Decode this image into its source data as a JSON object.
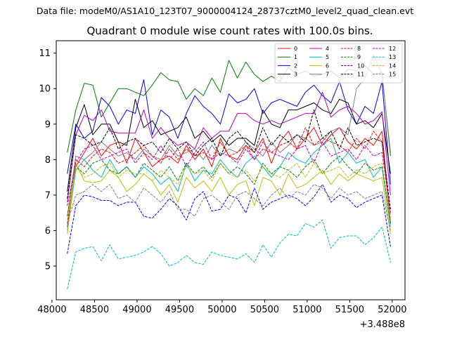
{
  "figure": {
    "suptitle": "Data file: modeM0/AS1A10_123T07_9000004124_28737cztM0_level2_quad_clean.evt",
    "title": "Quadrant 0 module wise count rates with 100.0s bins.",
    "x_offset_label": "+3.488e8"
  },
  "chart_data": {
    "type": "line",
    "title": "Quadrant 0 module wise count rates with 100.0s bins.",
    "xlabel": "",
    "ylabel": "",
    "x_offset": 348800000,
    "x_offset_label": "+3.488e8",
    "xlim": [
      48050,
      52150
    ],
    "ylim": [
      4.05,
      11.35
    ],
    "x_ticks": [
      48000,
      48500,
      49000,
      49500,
      50000,
      50500,
      51000,
      51500,
      52000
    ],
    "x_tick_labels": [
      "48000",
      "48500",
      "49000",
      "49500",
      "50000",
      "50500",
      "51000",
      "51500",
      "52000"
    ],
    "y_ticks": [
      5,
      6,
      7,
      8,
      9,
      10,
      11
    ],
    "y_tick_labels": [
      "5",
      "6",
      "7",
      "8",
      "9",
      "10",
      "11"
    ],
    "grid": false,
    "legend_position": "top-right",
    "legend_columns": 4,
    "x": [
      48179.5,
      48279.5,
      48379.5,
      48479.5,
      48579.5,
      48679.5,
      48779.5,
      48879.5,
      48979.5,
      49079.5,
      49179.5,
      49279.5,
      49379.5,
      49479.5,
      49579.5,
      49679.5,
      49779.5,
      49879.5,
      49979.5,
      50079.5,
      50179.5,
      50279.5,
      50379.5,
      50479.5,
      50579.5,
      50679.5,
      50779.5,
      50879.5,
      50979.5,
      51079.5,
      51179.5,
      51279.5,
      51379.5,
      51479.5,
      51579.5,
      51679.5,
      51779.5,
      51879.5,
      51979.5
    ],
    "series": [
      {
        "name": "0",
        "color": "#ff0000",
        "dash": "solid",
        "values": [
          6.1,
          7.8,
          8.2,
          8.6,
          8.1,
          8.4,
          8.5,
          7.9,
          8.6,
          8.2,
          7.8,
          8.0,
          8.1,
          7.9,
          8.4,
          8.0,
          8.3,
          7.8,
          8.6,
          8.1,
          8.0,
          8.4,
          8.2,
          8.6,
          7.9,
          8.5,
          8.8,
          8.3,
          8.6,
          8.9,
          8.4,
          8.7,
          8.9,
          8.5,
          8.3,
          8.6,
          8.4,
          8.8,
          6.2
        ]
      },
      {
        "name": "1",
        "color": "#008000",
        "dash": "solid",
        "values": [
          8.2,
          9.4,
          10.15,
          10.1,
          9.2,
          9.6,
          10.0,
          10.0,
          9.9,
          9.8,
          10.1,
          10.45,
          10.25,
          10.2,
          9.7,
          10.0,
          9.8,
          10.3,
          9.9,
          10.8,
          10.3,
          10.75,
          10.4,
          10.2,
          10.35,
          10.2,
          10.6,
          10.4,
          10.5,
          10.35,
          10.4,
          10.5,
          10.3,
          10.55,
          10.5,
          10.65,
          10.4,
          10.45,
          8.1
        ]
      },
      {
        "name": "2",
        "color": "#0000ff",
        "dash": "solid",
        "values": [
          7.6,
          9.0,
          8.6,
          8.8,
          9.75,
          9.5,
          9.0,
          9.4,
          9.3,
          10.25,
          8.7,
          9.4,
          9.2,
          8.6,
          9.3,
          9.8,
          9.5,
          9.3,
          9.0,
          9.85,
          9.6,
          9.7,
          10.0,
          9.3,
          9.6,
          9.7,
          9.6,
          9.5,
          9.9,
          10.1,
          9.8,
          9.6,
          10.2,
          9.4,
          9.0,
          9.5,
          9.3,
          10.2,
          7.3
        ]
      },
      {
        "name": "3",
        "color": "#000000",
        "dash": "solid",
        "values": [
          7.1,
          8.9,
          9.55,
          8.7,
          9.0,
          9.0,
          8.5,
          8.4,
          9.7,
          8.9,
          9.1,
          8.7,
          8.8,
          8.9,
          9.2,
          8.6,
          8.8,
          8.5,
          8.7,
          8.4,
          8.6,
          8.6,
          8.4,
          9.4,
          9.0,
          8.9,
          9.4,
          9.4,
          9.5,
          9.6,
          9.4,
          9.3,
          9.7,
          9.6,
          9.0,
          9.1,
          8.9,
          9.3,
          7.6
        ]
      },
      {
        "name": "4",
        "color": "#bf00bf",
        "dash": "solid",
        "values": [
          6.8,
          8.7,
          9.25,
          9.1,
          9.4,
          8.8,
          8.75,
          8.75,
          8.75,
          9.4,
          8.6,
          8.9,
          8.6,
          8.4,
          8.5,
          8.3,
          8.9,
          8.6,
          8.8,
          8.8,
          9.3,
          9.3,
          9.1,
          9.0,
          9.1,
          9.0,
          9.1,
          9.2,
          9.3,
          9.3,
          9.9,
          9.2,
          9.4,
          9.5,
          9.3,
          9.0,
          9.1,
          9.35,
          7.0
        ]
      },
      {
        "name": "5",
        "color": "#00bfbf",
        "dash": "solid",
        "values": [
          6.0,
          7.7,
          8.0,
          7.7,
          7.5,
          8.0,
          7.6,
          7.8,
          7.5,
          7.8,
          7.6,
          7.3,
          7.5,
          7.1,
          7.9,
          7.4,
          7.7,
          7.6,
          8.0,
          7.7,
          7.5,
          7.9,
          8.1,
          7.8,
          7.5,
          7.8,
          8.2,
          8.0,
          7.9,
          8.2,
          8.4,
          8.6,
          7.9,
          8.2,
          7.9,
          8.0,
          7.5,
          7.8,
          6.1
        ]
      },
      {
        "name": "6",
        "color": "#bfbf00",
        "dash": "solid",
        "values": [
          5.9,
          7.9,
          7.4,
          7.35,
          7.4,
          7.7,
          7.5,
          7.1,
          7.3,
          7.6,
          7.4,
          7.0,
          7.3,
          6.8,
          7.5,
          7.2,
          7.4,
          7.1,
          7.5,
          7.0,
          7.3,
          7.4,
          6.7,
          7.5,
          7.4,
          7.0,
          7.6,
          7.2,
          7.3,
          7.5,
          7.7,
          7.3,
          7.6,
          7.4,
          7.6,
          7.5,
          7.4,
          7.5,
          5.9
        ]
      },
      {
        "name": "7",
        "color": "#808080",
        "dash": "solid",
        "values": [
          6.4,
          8.1,
          8.0,
          8.2,
          8.5,
          8.3,
          8.1,
          8.2,
          8.0,
          8.3,
          8.1,
          8.0,
          8.4,
          8.1,
          8.2,
          8.3,
          8.0,
          8.4,
          8.1,
          8.3,
          8.2,
          8.5,
          8.3,
          8.1,
          8.5,
          8.2,
          8.4,
          8.7,
          8.6,
          8.4,
          8.5,
          8.8,
          8.9,
          8.7,
          10.0,
          10.3,
          10.95,
          10.4,
          8.2
        ]
      },
      {
        "name": "8",
        "color": "#ff0000",
        "dash": "dashed",
        "values": [
          6.2,
          8.0,
          7.8,
          8.1,
          8.3,
          8.2,
          7.9,
          8.0,
          8.2,
          8.4,
          8.1,
          7.9,
          8.3,
          8.0,
          8.3,
          8.1,
          8.2,
          8.0,
          8.5,
          8.1,
          8.2,
          8.4,
          8.0,
          8.3,
          8.2,
          8.4,
          8.5,
          8.3,
          8.9,
          8.4,
          8.6,
          8.5,
          8.4,
          8.2,
          8.6,
          8.3,
          8.8,
          8.5,
          6.3
        ]
      },
      {
        "name": "9",
        "color": "#008000",
        "dash": "dashed",
        "values": [
          6.4,
          7.8,
          7.6,
          7.9,
          8.0,
          7.7,
          7.6,
          7.8,
          7.5,
          7.9,
          7.7,
          7.5,
          7.8,
          7.4,
          7.9,
          7.6,
          7.8,
          7.5,
          7.9,
          7.6,
          7.8,
          7.6,
          7.3,
          7.9,
          7.6,
          7.8,
          7.7,
          7.5,
          7.8,
          8.0,
          7.6,
          7.9,
          8.1,
          7.8,
          7.6,
          7.9,
          7.7,
          7.8,
          6.2
        ]
      },
      {
        "name": "10",
        "color": "#0000ff",
        "dash": "dashed",
        "values": [
          5.35,
          6.7,
          7.0,
          6.95,
          6.85,
          6.85,
          6.7,
          6.8,
          6.8,
          6.4,
          6.35,
          6.6,
          6.9,
          6.7,
          6.3,
          6.9,
          7.1,
          6.55,
          6.6,
          7.0,
          6.9,
          6.5,
          7.2,
          6.6,
          6.8,
          6.9,
          7.0,
          6.9,
          6.7,
          6.95,
          7.3,
          6.8,
          7.0,
          6.9,
          6.65,
          6.8,
          6.9,
          7.0,
          5.55
        ]
      },
      {
        "name": "11",
        "color": "#000000",
        "dash": "dashed",
        "values": [
          6.9,
          8.7,
          8.6,
          8.4,
          8.5,
          8.9,
          8.3,
          8.5,
          8.6,
          8.4,
          8.5,
          8.2,
          8.6,
          8.3,
          8.5,
          8.1,
          8.4,
          8.6,
          8.1,
          8.6,
          8.8,
          8.5,
          8.2,
          8.9,
          8.4,
          8.7,
          8.5,
          8.7,
          8.5,
          9.4,
          8.6,
          8.8,
          8.3,
          8.9,
          8.4,
          8.5,
          8.6,
          8.5,
          6.6
        ]
      },
      {
        "name": "12",
        "color": "#bf00bf",
        "dash": "dashed",
        "values": [
          6.7,
          7.9,
          8.3,
          8.4,
          8.0,
          8.1,
          8.2,
          8.3,
          7.9,
          8.2,
          8.0,
          8.4,
          8.0,
          8.3,
          7.8,
          8.2,
          8.5,
          8.0,
          8.2,
          8.1,
          7.9,
          8.3,
          8.0,
          8.5,
          8.2,
          8.1,
          8.0,
          8.3,
          8.4,
          7.9,
          8.5,
          8.1,
          8.2,
          8.3,
          8.0,
          8.4,
          8.1,
          8.2,
          6.5
        ]
      },
      {
        "name": "13",
        "color": "#00bfbf",
        "dash": "dashed",
        "values": [
          4.35,
          5.4,
          5.5,
          5.55,
          5.15,
          5.6,
          5.2,
          5.25,
          5.3,
          5.4,
          5.55,
          5.35,
          5.0,
          5.1,
          5.3,
          5.1,
          5.05,
          5.4,
          5.3,
          5.25,
          5.2,
          5.35,
          5.1,
          5.6,
          5.25,
          5.65,
          5.9,
          5.85,
          6.2,
          6.1,
          6.3,
          5.5,
          5.8,
          5.85,
          5.85,
          5.6,
          5.8,
          6.1,
          5.1
        ]
      },
      {
        "name": "14",
        "color": "#bfbf00",
        "dash": "dashed",
        "values": [
          6.3,
          7.8,
          7.5,
          7.6,
          7.8,
          7.9,
          7.5,
          7.7,
          7.6,
          7.6,
          7.4,
          7.7,
          7.5,
          7.3,
          7.8,
          7.6,
          7.7,
          7.4,
          7.9,
          7.6,
          7.5,
          7.7,
          7.4,
          7.8,
          7.6,
          7.5,
          7.7,
          7.9,
          7.5,
          7.9,
          7.6,
          7.7,
          7.8,
          7.5,
          7.7,
          7.6,
          7.8,
          7.9,
          6.3
        ]
      },
      {
        "name": "15",
        "color": "#808080",
        "dash": "dashed",
        "values": [
          6.2,
          7.0,
          7.1,
          7.3,
          7.1,
          7.3,
          6.9,
          7.0,
          6.8,
          7.2,
          7.0,
          6.8,
          7.1,
          6.6,
          6.6,
          6.4,
          6.9,
          7.0,
          6.8,
          6.6,
          7.0,
          7.1,
          6.9,
          6.7,
          7.0,
          7.2,
          6.9,
          7.1,
          7.0,
          7.3,
          7.2,
          6.9,
          7.2,
          7.0,
          7.1,
          6.9,
          7.0,
          7.1,
          6.0
        ]
      }
    ]
  }
}
